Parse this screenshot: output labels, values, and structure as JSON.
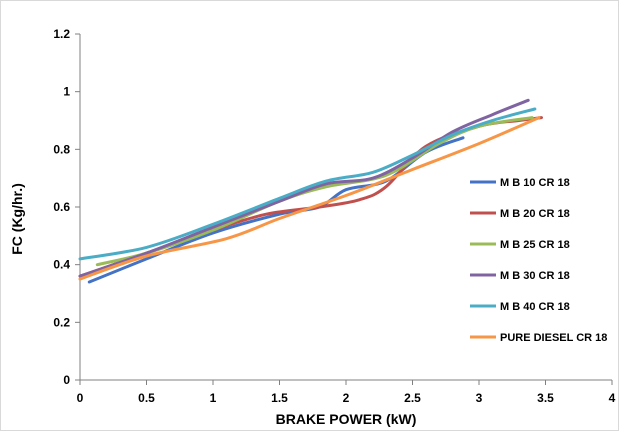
{
  "chart_data": {
    "type": "line",
    "title": "",
    "xlabel": "BRAKE POWER (kW)",
    "ylabel": "FC (Kg/hr.)",
    "xlim": [
      0,
      4
    ],
    "ylim": [
      0,
      1.2
    ],
    "xticks": [
      "0",
      "0.5",
      "1",
      "1.5",
      "2",
      "2.5",
      "3",
      "3.5",
      "4"
    ],
    "yticks": [
      "0",
      "0.2",
      "0.4",
      "0.6",
      "0.8",
      "1",
      "1.2"
    ],
    "grid": false,
    "legend_position": "right",
    "series": [
      {
        "name": "M B 10 CR 18",
        "color": "#4472C4",
        "x": [
          0.07,
          0.5,
          1.0,
          1.5,
          1.8,
          2.0,
          2.3,
          2.6,
          2.88
        ],
        "y": [
          0.34,
          0.42,
          0.51,
          0.575,
          0.6,
          0.66,
          0.69,
          0.79,
          0.84
        ]
      },
      {
        "name": "M B 20 CR 18",
        "color": "#C0504D",
        "x": [
          0.0,
          0.5,
          1.0,
          1.4,
          1.8,
          2.1,
          2.3,
          2.6,
          3.0,
          3.3,
          3.47
        ],
        "y": [
          0.36,
          0.44,
          0.52,
          0.575,
          0.6,
          0.625,
          0.67,
          0.81,
          0.88,
          0.9,
          0.91
        ]
      },
      {
        "name": "M B 25 CR 18",
        "color": "#9BBB59",
        "x": [
          0.13,
          0.5,
          1.0,
          1.5,
          1.85,
          2.3,
          2.7,
          3.0,
          3.4
        ],
        "y": [
          0.4,
          0.44,
          0.52,
          0.62,
          0.67,
          0.71,
          0.82,
          0.88,
          0.91
        ]
      },
      {
        "name": "M B 30 CR 18",
        "color": "#8064A2",
        "x": [
          0.0,
          0.5,
          1.0,
          1.5,
          1.85,
          2.2,
          2.5,
          2.8,
          3.1,
          3.37
        ],
        "y": [
          0.36,
          0.44,
          0.53,
          0.62,
          0.68,
          0.7,
          0.77,
          0.86,
          0.92,
          0.97
        ]
      },
      {
        "name": "M B 40 CR 18",
        "color": "#4BACC6",
        "x": [
          0.0,
          0.5,
          1.0,
          1.5,
          1.85,
          2.2,
          2.5,
          2.8,
          3.1,
          3.42
        ],
        "y": [
          0.42,
          0.46,
          0.54,
          0.63,
          0.69,
          0.72,
          0.78,
          0.85,
          0.9,
          0.94
        ]
      },
      {
        "name": "PURE DIESEL CR 18",
        "color": "#F79646",
        "x": [
          0.0,
          0.5,
          1.1,
          1.5,
          2.0,
          2.5,
          3.0,
          3.45
        ],
        "y": [
          0.35,
          0.43,
          0.49,
          0.56,
          0.64,
          0.73,
          0.82,
          0.91
        ]
      }
    ]
  }
}
